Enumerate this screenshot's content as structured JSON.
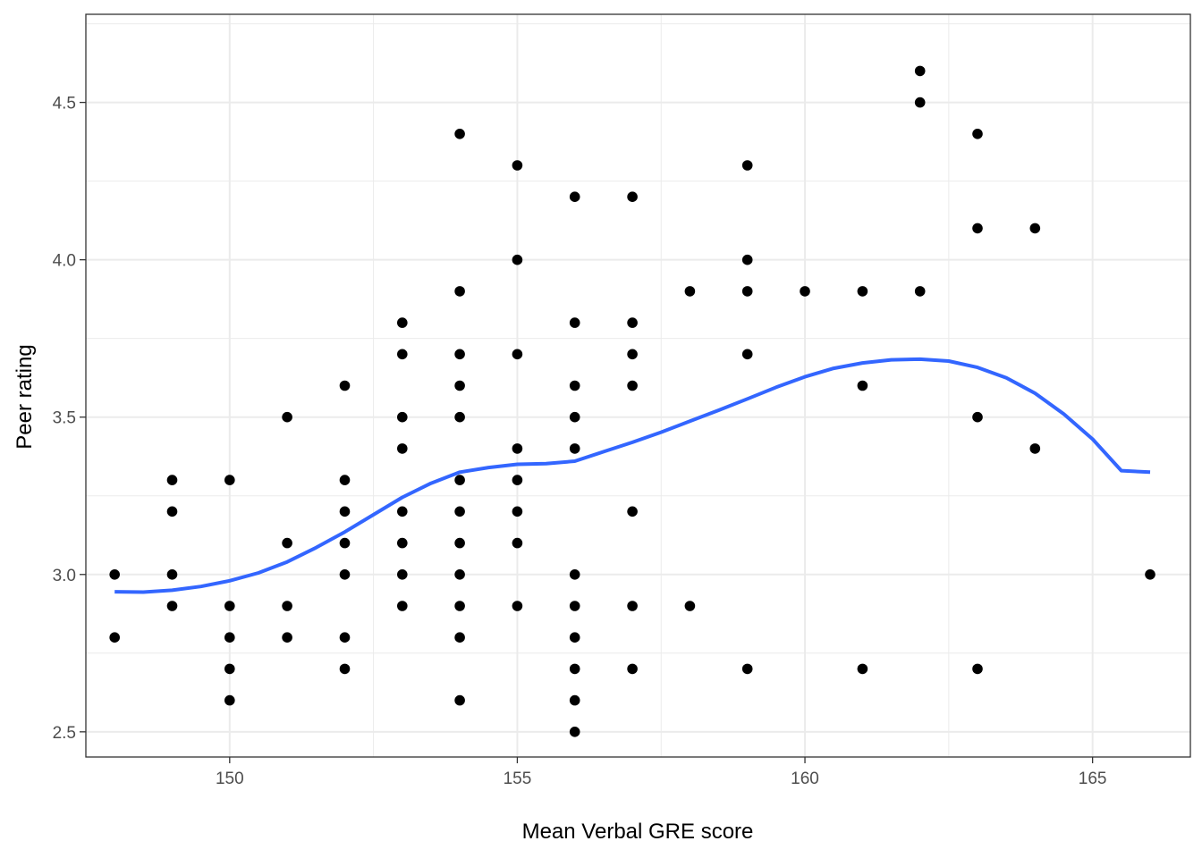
{
  "chart_data": {
    "type": "scatter",
    "title": "",
    "xlabel": "Mean Verbal GRE score",
    "ylabel": "Peer rating",
    "xlim": [
      147.5,
      166.7
    ],
    "ylim": [
      2.42,
      4.78
    ],
    "x_ticks": [
      150,
      155,
      160,
      165
    ],
    "x_tick_labels": [
      "150",
      "155",
      "160",
      "165"
    ],
    "y_ticks": [
      2.5,
      3.0,
      3.5,
      4.0,
      4.5
    ],
    "y_tick_labels": [
      "2.5",
      "3.0",
      "3.5",
      "4.0",
      "4.5"
    ],
    "grid": true,
    "theme": "bw",
    "point_color": "#000000",
    "smooth_color": "#3366FF",
    "points": [
      {
        "x": 148,
        "y": 3.0
      },
      {
        "x": 148,
        "y": 2.8
      },
      {
        "x": 149,
        "y": 3.3
      },
      {
        "x": 149,
        "y": 3.2
      },
      {
        "x": 149,
        "y": 3.0
      },
      {
        "x": 149,
        "y": 2.9
      },
      {
        "x": 150,
        "y": 3.3
      },
      {
        "x": 150,
        "y": 2.9
      },
      {
        "x": 150,
        "y": 2.8
      },
      {
        "x": 150,
        "y": 2.7
      },
      {
        "x": 150,
        "y": 2.6
      },
      {
        "x": 151,
        "y": 3.5
      },
      {
        "x": 151,
        "y": 3.1
      },
      {
        "x": 151,
        "y": 2.9
      },
      {
        "x": 151,
        "y": 2.8
      },
      {
        "x": 152,
        "y": 3.6
      },
      {
        "x": 152,
        "y": 3.3
      },
      {
        "x": 152,
        "y": 3.2
      },
      {
        "x": 152,
        "y": 3.1
      },
      {
        "x": 152,
        "y": 3.0
      },
      {
        "x": 152,
        "y": 2.8
      },
      {
        "x": 152,
        "y": 2.7
      },
      {
        "x": 153,
        "y": 3.8
      },
      {
        "x": 153,
        "y": 3.7
      },
      {
        "x": 153,
        "y": 3.5
      },
      {
        "x": 153,
        "y": 3.4
      },
      {
        "x": 153,
        "y": 3.2
      },
      {
        "x": 153,
        "y": 3.1
      },
      {
        "x": 153,
        "y": 3.0
      },
      {
        "x": 153,
        "y": 2.9
      },
      {
        "x": 154,
        "y": 4.4
      },
      {
        "x": 154,
        "y": 3.9
      },
      {
        "x": 154,
        "y": 3.7
      },
      {
        "x": 154,
        "y": 3.6
      },
      {
        "x": 154,
        "y": 3.5
      },
      {
        "x": 154,
        "y": 3.3
      },
      {
        "x": 154,
        "y": 3.2
      },
      {
        "x": 154,
        "y": 3.1
      },
      {
        "x": 154,
        "y": 3.0
      },
      {
        "x": 154,
        "y": 2.9
      },
      {
        "x": 154,
        "y": 2.8
      },
      {
        "x": 154,
        "y": 2.6
      },
      {
        "x": 155,
        "y": 4.3
      },
      {
        "x": 155,
        "y": 4.0
      },
      {
        "x": 155,
        "y": 3.7
      },
      {
        "x": 155,
        "y": 3.4
      },
      {
        "x": 155,
        "y": 3.3
      },
      {
        "x": 155,
        "y": 3.2
      },
      {
        "x": 155,
        "y": 3.1
      },
      {
        "x": 155,
        "y": 2.9
      },
      {
        "x": 156,
        "y": 4.2
      },
      {
        "x": 156,
        "y": 3.8
      },
      {
        "x": 156,
        "y": 3.6
      },
      {
        "x": 156,
        "y": 3.5
      },
      {
        "x": 156,
        "y": 3.4
      },
      {
        "x": 156,
        "y": 3.0
      },
      {
        "x": 156,
        "y": 2.9
      },
      {
        "x": 156,
        "y": 2.8
      },
      {
        "x": 156,
        "y": 2.7
      },
      {
        "x": 156,
        "y": 2.6
      },
      {
        "x": 156,
        "y": 2.5
      },
      {
        "x": 157,
        "y": 4.2
      },
      {
        "x": 157,
        "y": 3.8
      },
      {
        "x": 157,
        "y": 3.7
      },
      {
        "x": 157,
        "y": 3.6
      },
      {
        "x": 157,
        "y": 3.2
      },
      {
        "x": 157,
        "y": 2.9
      },
      {
        "x": 157,
        "y": 2.7
      },
      {
        "x": 158,
        "y": 3.9
      },
      {
        "x": 158,
        "y": 2.9
      },
      {
        "x": 159,
        "y": 4.3
      },
      {
        "x": 159,
        "y": 4.0
      },
      {
        "x": 159,
        "y": 3.9
      },
      {
        "x": 159,
        "y": 3.7
      },
      {
        "x": 159,
        "y": 2.7
      },
      {
        "x": 160,
        "y": 3.9
      },
      {
        "x": 161,
        "y": 3.9
      },
      {
        "x": 161,
        "y": 3.6
      },
      {
        "x": 161,
        "y": 2.7
      },
      {
        "x": 162,
        "y": 4.6
      },
      {
        "x": 162,
        "y": 4.5
      },
      {
        "x": 162,
        "y": 3.9
      },
      {
        "x": 163,
        "y": 4.4
      },
      {
        "x": 163,
        "y": 4.1
      },
      {
        "x": 163,
        "y": 3.5
      },
      {
        "x": 163,
        "y": 2.7
      },
      {
        "x": 164,
        "y": 4.1
      },
      {
        "x": 164,
        "y": 3.4
      },
      {
        "x": 166,
        "y": 3.0
      }
    ],
    "smooth": {
      "x": [
        148,
        148.5,
        149,
        149.5,
        150,
        150.5,
        151,
        151.5,
        152,
        152.5,
        153,
        153.5,
        154,
        154.5,
        155,
        155.5,
        156,
        156.5,
        157,
        157.5,
        158,
        158.5,
        159,
        159.5,
        160,
        160.5,
        161,
        161.5,
        162,
        162.5,
        163,
        163.5,
        164,
        164.5,
        165,
        165.5,
        166
      ],
      "y": [
        2.945,
        2.944,
        2.95,
        2.962,
        2.98,
        3.005,
        3.04,
        3.085,
        3.135,
        3.19,
        3.245,
        3.29,
        3.325,
        3.34,
        3.35,
        3.352,
        3.36,
        3.39,
        3.42,
        3.452,
        3.487,
        3.522,
        3.558,
        3.595,
        3.628,
        3.655,
        3.672,
        3.682,
        3.684,
        3.678,
        3.658,
        3.625,
        3.576,
        3.51,
        3.43,
        3.33,
        3.325
      ]
    }
  }
}
